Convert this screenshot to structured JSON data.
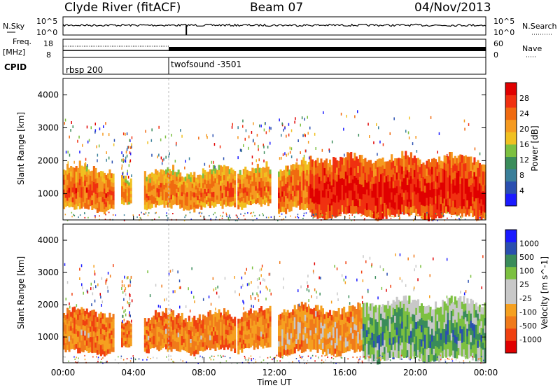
{
  "header": {
    "station": "Clyde River (fitACF)",
    "beam": "Beam 07",
    "date": "04/Nov/2013"
  },
  "top_panels": {
    "nsky_label": "N.Sky",
    "nsky_ticks": [
      "10^5",
      "10^0"
    ],
    "nsearch_label": "N.Search",
    "nsearch_ticks": [
      "10^5",
      "10^0"
    ],
    "freq_label": "Freq.",
    "freq_unit": "[MHz]",
    "freq_ticks": [
      "18",
      "8"
    ],
    "nave_label": "Nave",
    "nave_ticks": [
      "60",
      "0"
    ],
    "cpid_label": "CPID",
    "cpid_segments": [
      {
        "name": "rbsp 200",
        "start_hour": 0
      },
      {
        "name": "twofsound -3501",
        "start_hour": 6
      }
    ]
  },
  "colors": {
    "power": [
      "#1a1aff",
      "#2a4fb0",
      "#3a7f9a",
      "#3a8c5a",
      "#7cc040",
      "#f0c020",
      "#f59a20",
      "#f06a10",
      "#f03010",
      "#e00000"
    ],
    "velocity": [
      "#e00000",
      "#f04010",
      "#f07a1a",
      "#f5a020",
      "#c8c8c8",
      "#c8c8c8",
      "#7cc040",
      "#3a8c5a",
      "#2a4fb0",
      "#1a1aff"
    ]
  },
  "chart_data": [
    {
      "type": "heatmap",
      "name": "power",
      "xlabel": "",
      "ylabel": "Slant Range [km]",
      "xlim": [
        0,
        24
      ],
      "ylim": [
        200,
        4500
      ],
      "yticks": [
        "1000",
        "2000",
        "3000",
        "4000"
      ],
      "colorbar_label": "Power [dB]",
      "colorbar_ticks": [
        "4",
        "8",
        "12",
        "16",
        "20",
        "24",
        "28"
      ],
      "bands": [
        {
          "t0": 0.0,
          "t1": 2.9,
          "r0": 500,
          "r1": 1900,
          "level": 0.8
        },
        {
          "t0": 3.3,
          "t1": 3.9,
          "r0": 600,
          "r1": 1500,
          "level": 0.7
        },
        {
          "t0": 4.6,
          "t1": 9.8,
          "r0": 550,
          "r1": 1800,
          "level": 0.75
        },
        {
          "t0": 9.9,
          "t1": 11.8,
          "r0": 600,
          "r1": 1900,
          "level": 0.75
        },
        {
          "t0": 12.2,
          "t1": 14.0,
          "r0": 500,
          "r1": 2000,
          "level": 0.8
        },
        {
          "t0": 14.0,
          "t1": 24.0,
          "r0": 300,
          "r1": 2200,
          "level": 0.95
        }
      ]
    },
    {
      "type": "heatmap",
      "name": "velocity",
      "xlabel": "Time UT",
      "ylabel": "Slant Range [km]",
      "xlim": [
        0,
        24
      ],
      "ylim": [
        200,
        4500
      ],
      "xticks": [
        "00:00",
        "04:00",
        "08:00",
        "12:00",
        "16:00",
        "20:00",
        "00:00"
      ],
      "yticks": [
        "1000",
        "2000",
        "3000",
        "4000"
      ],
      "colorbar_label": "Velocity [m s^-1]",
      "colorbar_ticks": [
        "-1000",
        "-500",
        "-100",
        "-25",
        "25",
        "100",
        "500",
        "1000"
      ],
      "bands": [
        {
          "t0": 0.0,
          "t1": 2.9,
          "r0": 500,
          "r1": 1900,
          "level": 0.3
        },
        {
          "t0": 3.3,
          "t1": 3.9,
          "r0": 600,
          "r1": 1500,
          "level": 0.3
        },
        {
          "t0": 4.6,
          "t1": 9.8,
          "r0": 550,
          "r1": 1800,
          "level": 0.3
        },
        {
          "t0": 9.9,
          "t1": 11.8,
          "r0": 600,
          "r1": 1900,
          "level": 0.3
        },
        {
          "t0": 12.2,
          "t1": 17.0,
          "r0": 500,
          "r1": 2000,
          "level": 0.35
        },
        {
          "t0": 17.0,
          "t1": 24.0,
          "r0": 300,
          "r1": 2200,
          "level": 0.75
        }
      ]
    }
  ]
}
